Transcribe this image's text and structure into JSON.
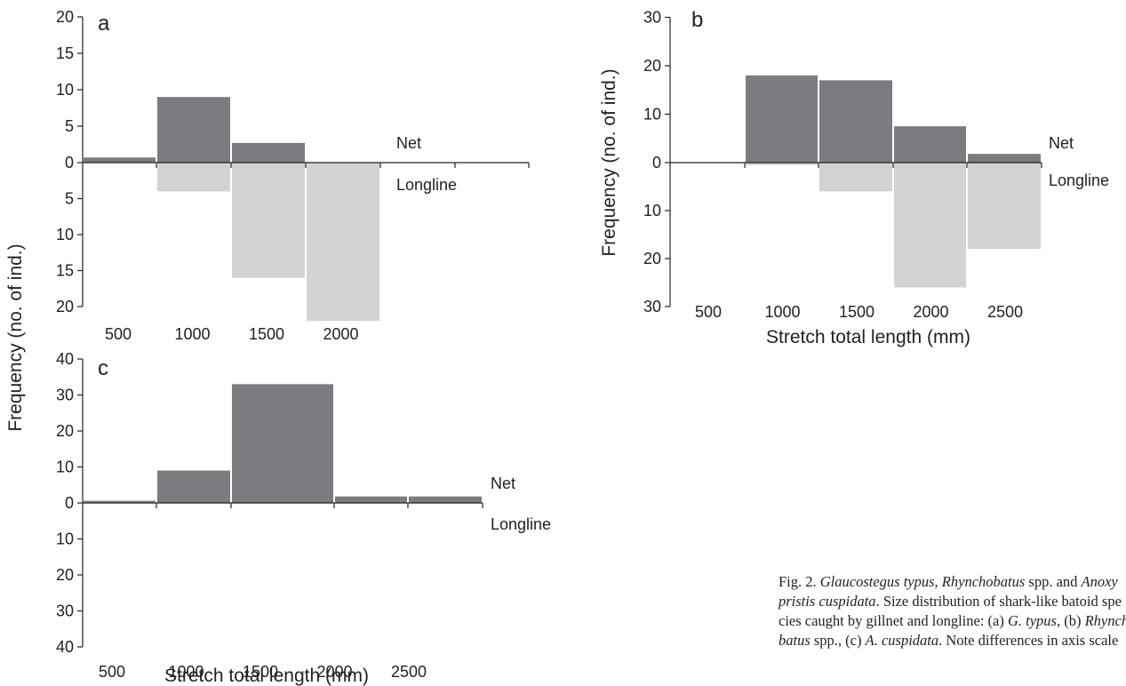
{
  "chart_data": [
    {
      "type": "bar",
      "panel": "a",
      "xlabel": "",
      "ylabel": "Frequency (no. of ind.)",
      "categories": [
        "500",
        "1000",
        "1500",
        "2000"
      ],
      "ylim_up": [
        0,
        20
      ],
      "ylim_down": [
        0,
        20
      ],
      "yticks_up": [
        0,
        5,
        10,
        15,
        20
      ],
      "yticks_down": [
        5,
        10,
        15,
        20
      ],
      "series": [
        {
          "name": "Net",
          "color": "#7b7b80",
          "values": [
            0.7,
            9,
            2.7,
            0
          ]
        },
        {
          "name": "Longline",
          "color": "#d3d3d5",
          "values": [
            0,
            4,
            16,
            22
          ]
        }
      ]
    },
    {
      "type": "bar",
      "panel": "b",
      "xlabel": "Stretch total length (mm)",
      "ylabel": "Frequency (no. of ind.)",
      "categories": [
        "500",
        "1000",
        "1500",
        "2000",
        "2500"
      ],
      "ylim_up": [
        0,
        30
      ],
      "ylim_down": [
        0,
        30
      ],
      "yticks_up": [
        0,
        10,
        20,
        30
      ],
      "yticks_down": [
        10,
        20,
        30
      ],
      "series": [
        {
          "name": "Net",
          "color": "#7b7b80",
          "values": [
            0,
            18,
            17,
            7.5,
            1.8
          ]
        },
        {
          "name": "Longline",
          "color": "#d3d3d5",
          "values": [
            0,
            0.5,
            6,
            26,
            18
          ]
        }
      ]
    },
    {
      "type": "bar",
      "panel": "c",
      "xlabel": "Stretch total length (mm)",
      "ylabel": "",
      "categories": [
        "500",
        "1000",
        "1500",
        "2000",
        "2500"
      ],
      "ylim_up": [
        0,
        40
      ],
      "ylim_down": [
        0,
        40
      ],
      "yticks_up": [
        0,
        10,
        20,
        30,
        40
      ],
      "yticks_down": [
        10,
        20,
        30,
        40
      ],
      "series": [
        {
          "name": "Net",
          "color": "#7b7b80",
          "values": [
            0.6,
            9,
            33,
            1.8,
            1.8
          ]
        },
        {
          "name": "Longline",
          "color": "#d3d3d5",
          "values": [
            0,
            0,
            0,
            0,
            0
          ]
        }
      ]
    }
  ],
  "caption": {
    "fig_label": "Fig. 2.",
    "lines": [
      [
        {
          "t": "Glaucostegus typus",
          "i": true
        },
        {
          "t": ", ",
          "i": false
        },
        {
          "t": "Rhynchobatus",
          "i": true
        },
        {
          "t": " spp. and ",
          "i": false
        },
        {
          "t": "Anoxy",
          "i": true
        }
      ],
      [
        {
          "t": "pristis cuspidata",
          "i": true
        },
        {
          "t": ". Size distribution of shark-like batoid spe",
          "i": false
        }
      ],
      [
        {
          "t": "cies caught by gillnet and longline: (a) ",
          "i": false
        },
        {
          "t": "G. typus",
          "i": true
        },
        {
          "t": ", (b) ",
          "i": false
        },
        {
          "t": "Rhyncho",
          "i": true
        }
      ],
      [
        {
          "t": "batus",
          "i": true
        },
        {
          "t": " spp., (c) ",
          "i": false
        },
        {
          "t": "A. cuspidata",
          "i": true
        },
        {
          "t": ". Note differences in axis scale",
          "i": false
        }
      ]
    ]
  }
}
